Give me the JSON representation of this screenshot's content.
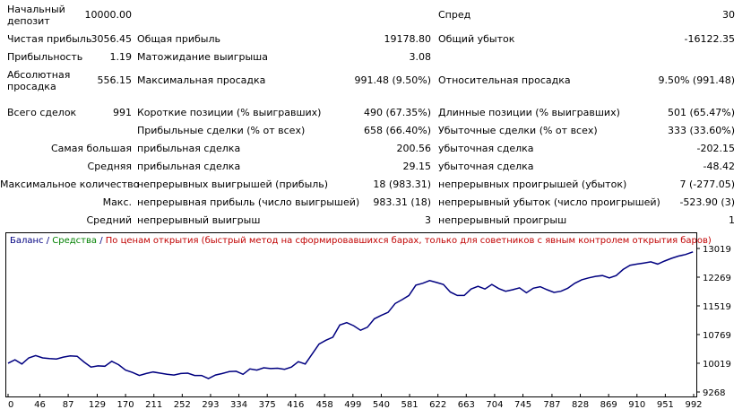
{
  "report": {
    "deposit_label": "Начальный\nдепозит",
    "deposit_value": "10000.00",
    "spread_label": "Спред",
    "spread_value": "30",
    "net_profit_label": "Чистая прибыль",
    "net_profit_value": "3056.45",
    "gross_profit_label": "Общая прибыль",
    "gross_profit_value": "19178.80",
    "gross_loss_label": "Общий убыток",
    "gross_loss_value": "-16122.35",
    "profit_factor_label": "Прибыльность",
    "profit_factor_value": "1.19",
    "expected_payoff_label": "Матожидание выигрыша",
    "expected_payoff_value": "3.08",
    "abs_drawdown_label": "Абсолютная\nпросадка",
    "abs_drawdown_value": "556.15",
    "max_drawdown_label": "Максимальная просадка",
    "max_drawdown_value": "991.48 (9.50%)",
    "rel_drawdown_label": "Относительная просадка",
    "rel_drawdown_value": "9.50% (991.48)",
    "total_trades_label": "Всего сделок",
    "total_trades_value": "991",
    "short_label": "Короткие позиции (% выигравших)",
    "short_value": "490 (67.35%)",
    "long_label": "Длинные позиции (% выигравших)",
    "long_value": "501 (65.47%)",
    "profit_trades_label": "Прибыльные сделки (% от всех)",
    "profit_trades_value": "658 (66.40%)",
    "loss_trades_label": "Убыточные сделки (% от всех)",
    "loss_trades_value": "333 (33.60%)",
    "largest_label": "Самая большая",
    "largest_profit_label": "прибыльная сделка",
    "largest_profit_value": "200.56",
    "largest_loss_label": "убыточная сделка",
    "largest_loss_value": "-202.15",
    "average_label": "Средняя",
    "average_profit_label": "прибыльная сделка",
    "average_profit_value": "29.15",
    "average_loss_label": "убыточная сделка",
    "average_loss_value": "-48.42",
    "max_count_label": "Максимальное количество",
    "max_cons_wins_label": "непрерывных выигрышей (прибыль)",
    "max_cons_wins_value": "18 (983.31)",
    "max_cons_losses_label": "непрерывных проигрышей (убыток)",
    "max_cons_losses_value": "7 (-277.05)",
    "max_label": "Макс.",
    "max_cons_profit_label": "непрерывная прибыль (число выигрышей)",
    "max_cons_profit_value": "983.31 (18)",
    "max_cons_loss_label": "непрерывный убыток (число проигрышей)",
    "max_cons_loss_value": "-523.90 (3)",
    "avg_label": "Средний",
    "avg_cons_wins_label": "непрерывный выигрыш",
    "avg_cons_wins_value": "3",
    "avg_cons_losses_label": "непрерывный проигрыш",
    "avg_cons_losses_value": "1"
  },
  "legend": {
    "balance": "Баланс",
    "sep1": " / ",
    "equity": "Средства",
    "sep2": " / ",
    "method": "По ценам открытия (быстрый метод на сформировавшихся барах, только для советников с явным контролем открытия баров)"
  },
  "colors": {
    "balance": "#000080",
    "equity": "#008000",
    "method": "#c00000",
    "legend": "#000080"
  },
  "chart_data": {
    "type": "line",
    "x_ticks": [
      0,
      46,
      87,
      129,
      170,
      211,
      252,
      293,
      334,
      375,
      416,
      458,
      499,
      540,
      581,
      622,
      663,
      704,
      745,
      787,
      828,
      869,
      910,
      951,
      992
    ],
    "y_ticks": [
      9268,
      10019,
      10769,
      11519,
      12269,
      13019
    ],
    "xlim": [
      0,
      992
    ],
    "ylim": [
      9268,
      13019
    ],
    "series": [
      {
        "name": "Баланс",
        "x": [
          0,
          10,
          20,
          30,
          40,
          50,
          60,
          70,
          80,
          90,
          100,
          110,
          120,
          130,
          140,
          150,
          160,
          170,
          180,
          190,
          200,
          210,
          220,
          230,
          240,
          250,
          260,
          270,
          280,
          290,
          300,
          310,
          320,
          330,
          340,
          350,
          360,
          370,
          380,
          390,
          400,
          410,
          420,
          430,
          440,
          450,
          460,
          470,
          480,
          490,
          500,
          510,
          520,
          530,
          540,
          550,
          560,
          570,
          580,
          590,
          600,
          610,
          620,
          630,
          640,
          650,
          660,
          670,
          680,
          690,
          700,
          710,
          720,
          730,
          740,
          750,
          760,
          770,
          780,
          790,
          800,
          810,
          820,
          830,
          840,
          850,
          860,
          870,
          880,
          890,
          900,
          910,
          920,
          930,
          940,
          950,
          960,
          970,
          980,
          991
        ],
        "y": [
          10020,
          10110,
          10000,
          10160,
          10220,
          10160,
          10140,
          10130,
          10180,
          10210,
          10200,
          10050,
          9920,
          9950,
          9940,
          10070,
          9980,
          9840,
          9780,
          9700,
          9750,
          9790,
          9760,
          9730,
          9710,
          9750,
          9760,
          9700,
          9700,
          9620,
          9710,
          9750,
          9800,
          9810,
          9730,
          9870,
          9840,
          9900,
          9880,
          9890,
          9860,
          9920,
          10060,
          10000,
          10260,
          10520,
          10620,
          10700,
          11020,
          11080,
          11000,
          10880,
          10960,
          11180,
          11270,
          11350,
          11580,
          11680,
          11790,
          12060,
          12110,
          12180,
          12130,
          12080,
          11880,
          11790,
          11790,
          11960,
          12030,
          11960,
          12080,
          11970,
          11900,
          11940,
          11990,
          11860,
          11980,
          12020,
          11940,
          11870,
          11900,
          11980,
          12110,
          12200,
          12250,
          12290,
          12310,
          12250,
          12310,
          12470,
          12580,
          12610,
          12640,
          12670,
          12610,
          12690,
          12760,
          12820,
          12860,
          12930
        ]
      }
    ]
  }
}
